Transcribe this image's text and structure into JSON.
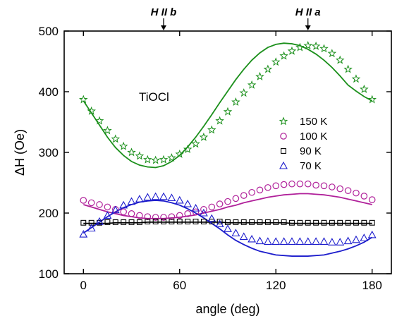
{
  "chart_data": {
    "type": "scatter",
    "xlabel": "angle (deg)",
    "ylabel": "ΔH (Oe)",
    "xlim": [
      -12,
      192
    ],
    "ylim": [
      100,
      500
    ],
    "xticks": [
      0,
      60,
      120,
      180
    ],
    "yticks": [
      100,
      200,
      300,
      400,
      500
    ],
    "annotation": "TiOCl",
    "top_labels": [
      {
        "text": "H II b",
        "x": 50
      },
      {
        "text": "H II a",
        "x": 140
      }
    ],
    "legend_position": "right",
    "series": [
      {
        "name": "150 K",
        "marker": "star",
        "color": "#1a8f1a",
        "x": [
          0,
          5,
          10,
          15,
          20,
          25,
          30,
          35,
          40,
          45,
          50,
          55,
          60,
          65,
          70,
          75,
          80,
          85,
          90,
          95,
          100,
          105,
          110,
          115,
          120,
          125,
          130,
          135,
          140,
          145,
          150,
          155,
          160,
          165,
          170,
          175,
          180
        ],
        "y": [
          387,
          368,
          352,
          336,
          322,
          310,
          300,
          294,
          288,
          287,
          288,
          291,
          297,
          305,
          314,
          325,
          337,
          352,
          367,
          383,
          398,
          411,
          425,
          437,
          449,
          459,
          467,
          473,
          476,
          475,
          471,
          463,
          452,
          437,
          421,
          404,
          387
        ],
        "fit": [
          385,
          365,
          345,
          325,
          308,
          295,
          285,
          279,
          276,
          275,
          278,
          285,
          295,
          309,
          325,
          343,
          362,
          382,
          401,
          420,
          437,
          452,
          464,
          473,
          478,
          480,
          479,
          476,
          470,
          462,
          452,
          440,
          426,
          411,
          401,
          392,
          385
        ]
      },
      {
        "name": "100 K",
        "marker": "circle",
        "color": "#b0209a",
        "x": [
          0,
          5,
          10,
          15,
          20,
          25,
          30,
          35,
          40,
          45,
          50,
          55,
          60,
          65,
          70,
          75,
          80,
          85,
          90,
          95,
          100,
          105,
          110,
          115,
          120,
          125,
          130,
          135,
          140,
          145,
          150,
          155,
          160,
          165,
          170,
          175,
          180
        ],
        "y": [
          221,
          217,
          214,
          210,
          206,
          202,
          199,
          196,
          194,
          193,
          193,
          194,
          196,
          199,
          202,
          206,
          210,
          215,
          219,
          224,
          229,
          234,
          238,
          242,
          245,
          247,
          248,
          248,
          248,
          246,
          245,
          243,
          240,
          237,
          233,
          228,
          222
        ],
        "fit": [
          214,
          210,
          206,
          202,
          199,
          196,
          194,
          192,
          191,
          191,
          191,
          192,
          193,
          195,
          197,
          200,
          203,
          206,
          210,
          213,
          217,
          220,
          223,
          226,
          228,
          230,
          231,
          232,
          232,
          231,
          230,
          228,
          226,
          223,
          220,
          217,
          214
        ]
      },
      {
        "name": "90 K",
        "marker": "square",
        "color": "#000000",
        "x": [
          0,
          5,
          10,
          15,
          20,
          25,
          30,
          35,
          40,
          45,
          50,
          55,
          60,
          65,
          70,
          75,
          80,
          85,
          90,
          95,
          100,
          105,
          110,
          115,
          120,
          125,
          130,
          135,
          140,
          145,
          150,
          155,
          160,
          165,
          170,
          175,
          180
        ],
        "y": [
          184,
          184,
          184,
          185,
          185,
          185,
          185,
          185,
          186,
          186,
          186,
          186,
          186,
          186,
          186,
          186,
          186,
          186,
          185,
          185,
          185,
          185,
          185,
          185,
          185,
          185,
          184,
          184,
          184,
          184,
          184,
          184,
          184,
          184,
          184,
          184,
          184
        ],
        "fit": [
          183,
          183,
          183,
          183,
          184,
          184,
          184,
          184,
          185,
          185,
          185,
          185,
          185,
          185,
          185,
          185,
          185,
          185,
          184,
          184,
          184,
          184,
          184,
          184,
          184,
          184,
          183,
          183,
          183,
          183,
          183,
          183,
          183,
          183,
          183,
          183,
          183
        ]
      },
      {
        "name": "70 K",
        "marker": "triangle",
        "color": "#1c1ccc",
        "x": [
          0,
          5,
          10,
          15,
          20,
          25,
          30,
          35,
          40,
          45,
          50,
          55,
          60,
          65,
          70,
          75,
          80,
          85,
          90,
          95,
          100,
          105,
          110,
          115,
          120,
          125,
          130,
          135,
          140,
          145,
          150,
          155,
          160,
          165,
          170,
          175,
          180
        ],
        "y": [
          165,
          175,
          186,
          196,
          205,
          213,
          219,
          223,
          226,
          227,
          227,
          225,
          221,
          215,
          208,
          200,
          191,
          182,
          174,
          167,
          161,
          157,
          154,
          153,
          153,
          153,
          153,
          153,
          153,
          153,
          153,
          152,
          152,
          154,
          156,
          159,
          164
        ],
        "fit": [
          167,
          176,
          185,
          194,
          202,
          209,
          214,
          218,
          220,
          221,
          220,
          217,
          213,
          207,
          200,
          192,
          183,
          174,
          164,
          155,
          148,
          142,
          137,
          134,
          131,
          130,
          129,
          129,
          129,
          130,
          131,
          134,
          137,
          141,
          146,
          152,
          160
        ]
      }
    ]
  }
}
